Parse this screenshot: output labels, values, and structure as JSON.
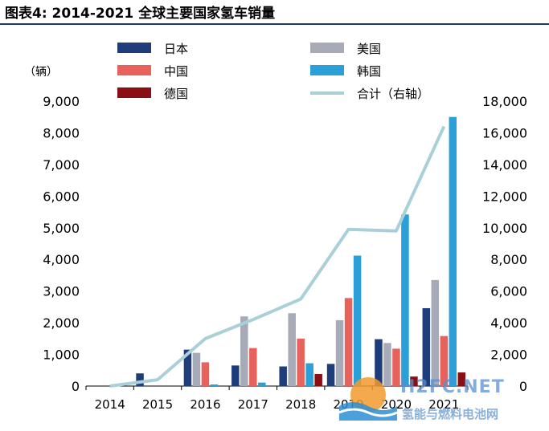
{
  "title": "图表4:   2014-2021 全球主要国家氢车销量",
  "watermark": {
    "brand": "H2FC.NET",
    "subtitle": "氢能与燃料电池网"
  },
  "chart_data": {
    "type": "bar",
    "title": "2014-2021 全球主要国家氢车销量",
    "categories": [
      "2014",
      "2015",
      "2016",
      "2017",
      "2018",
      "2019",
      "2020",
      "2021"
    ],
    "ylabel": "（辆）",
    "ylim": [
      0,
      9000
    ],
    "y_ticks": [
      "0",
      "1,000",
      "2,000",
      "3,000",
      "4,000",
      "5,000",
      "6,000",
      "7,000",
      "8,000",
      "9,000"
    ],
    "y2lim": [
      0,
      18000
    ],
    "y2_ticks": [
      "0",
      "2,000",
      "4,000",
      "6,000",
      "8,000",
      "10,000",
      "12,000",
      "14,000",
      "16,000",
      "18,000"
    ],
    "legend_position": "top",
    "series": [
      {
        "name": "日本",
        "color": "#1f3d7a",
        "values": [
          0,
          400,
          1150,
          650,
          620,
          700,
          1480,
          2460
        ]
      },
      {
        "name": "美国",
        "color": "#a7abb7",
        "values": [
          0,
          0,
          1050,
          2200,
          2300,
          2080,
          1360,
          3350
        ]
      },
      {
        "name": "中国",
        "color": "#e8625d",
        "values": [
          0,
          0,
          750,
          1200,
          1500,
          2780,
          1180,
          1580
        ]
      },
      {
        "name": "韩国",
        "color": "#2b9fd7",
        "values": [
          0,
          0,
          50,
          110,
          720,
          4120,
          5420,
          8500
        ]
      },
      {
        "name": "德国",
        "color": "#8a0f14",
        "values": [
          0,
          0,
          0,
          0,
          380,
          0,
          300,
          430
        ]
      }
    ],
    "line_series": {
      "name": "合计（右轴）",
      "color": "#a9d0d9",
      "axis": "right",
      "values": [
        0,
        400,
        3000,
        4200,
        5500,
        9900,
        9800,
        16400
      ]
    }
  }
}
